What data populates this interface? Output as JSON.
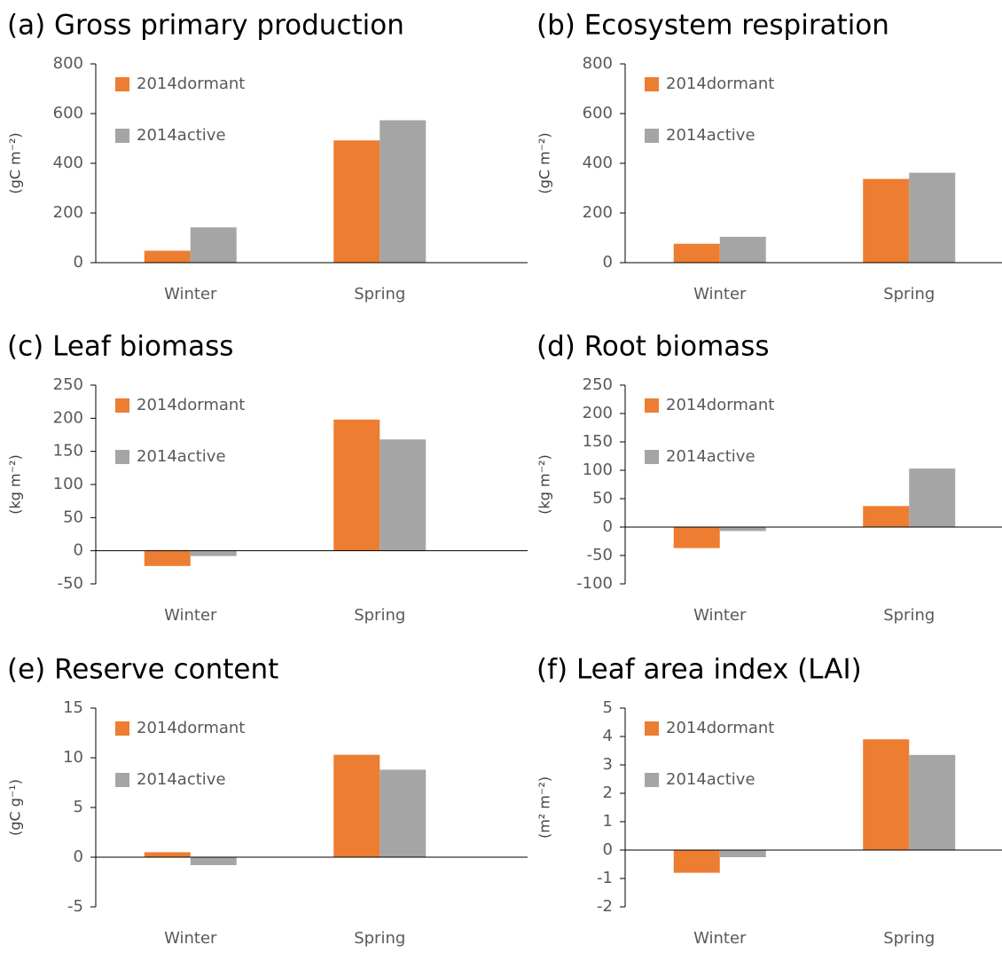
{
  "chart_data": [
    {
      "type": "bar",
      "title": "(a) Gross primary production",
      "y_label": "(gC m⁻²)",
      "categories": [
        "Winter",
        "Spring"
      ],
      "series": [
        {
          "name": "2014dormant",
          "color": "#ed7d31",
          "values": [
            48,
            492
          ]
        },
        {
          "name": "2014active",
          "color": "#a5a5a5",
          "values": [
            142,
            573
          ]
        }
      ],
      "ylim": [
        0,
        800
      ],
      "yticks": [
        0,
        200,
        400,
        600,
        800
      ],
      "legend": "upper left"
    },
    {
      "type": "bar",
      "title": "(b) Ecosystem respiration",
      "y_label": "(gC m⁻²)",
      "categories": [
        "Winter",
        "Spring"
      ],
      "series": [
        {
          "name": "2014dormant",
          "color": "#ed7d31",
          "values": [
            76,
            337
          ]
        },
        {
          "name": "2014active",
          "color": "#a5a5a5",
          "values": [
            104,
            362
          ]
        }
      ],
      "ylim": [
        0,
        800
      ],
      "yticks": [
        0,
        200,
        400,
        600,
        800
      ],
      "legend": "upper left"
    },
    {
      "type": "bar",
      "title": "(c) Leaf biomass",
      "y_label": "(kg m⁻²)",
      "categories": [
        "Winter",
        "Spring"
      ],
      "series": [
        {
          "name": "2014dormant",
          "color": "#ed7d31",
          "values": [
            -23,
            198
          ]
        },
        {
          "name": "2014active",
          "color": "#a5a5a5",
          "values": [
            -8,
            168
          ]
        }
      ],
      "ylim": [
        -50,
        250
      ],
      "yticks": [
        -50,
        0,
        50,
        100,
        150,
        200,
        250
      ],
      "legend": "upper left"
    },
    {
      "type": "bar",
      "title": "(d) Root biomass",
      "y_label": "(kg m⁻²)",
      "categories": [
        "Winter",
        "Spring"
      ],
      "series": [
        {
          "name": "2014dormant",
          "color": "#ed7d31",
          "values": [
            -37,
            37
          ]
        },
        {
          "name": "2014active",
          "color": "#a5a5a5",
          "values": [
            -7,
            103
          ]
        }
      ],
      "ylim": [
        -100,
        250
      ],
      "yticks": [
        -100,
        -50,
        0,
        50,
        100,
        150,
        200,
        250
      ],
      "legend": "upper left"
    },
    {
      "type": "bar",
      "title": "(e) Reserve content",
      "y_label": "(gC g⁻¹)",
      "categories": [
        "Winter",
        "Spring"
      ],
      "series": [
        {
          "name": "2014dormant",
          "color": "#ed7d31",
          "values": [
            0.5,
            10.3
          ]
        },
        {
          "name": "2014active",
          "color": "#a5a5a5",
          "values": [
            -0.8,
            8.8
          ]
        }
      ],
      "ylim": [
        -5,
        15
      ],
      "yticks": [
        -5,
        0,
        5,
        10,
        15
      ],
      "legend": "upper left"
    },
    {
      "type": "bar",
      "title": "(f) Leaf area index (LAI)",
      "y_label": "(m² m⁻²)",
      "categories": [
        "Winter",
        "Spring"
      ],
      "series": [
        {
          "name": "2014dormant",
          "color": "#ed7d31",
          "values": [
            -0.8,
            3.9
          ]
        },
        {
          "name": "2014active",
          "color": "#a5a5a5",
          "values": [
            -0.25,
            3.35
          ]
        }
      ],
      "ylim": [
        -2,
        5
      ],
      "yticks": [
        -2,
        -1,
        0,
        1,
        2,
        3,
        4,
        5
      ],
      "legend": "upper left"
    }
  ]
}
